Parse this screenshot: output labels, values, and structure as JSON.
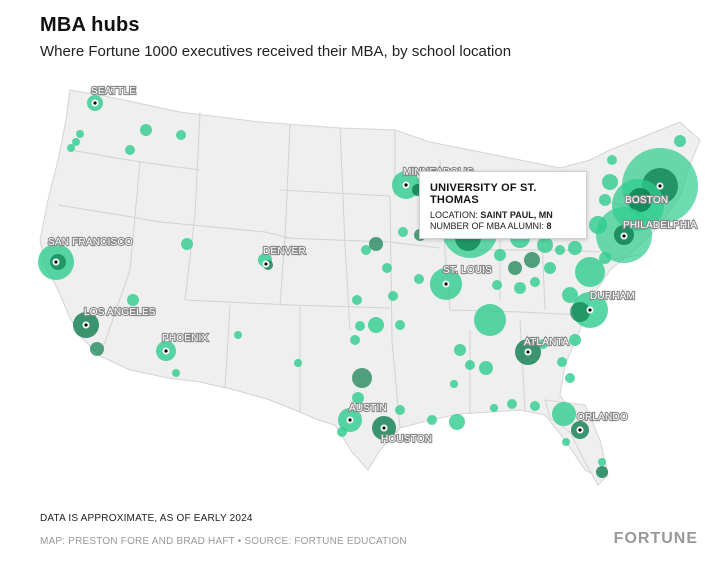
{
  "header": {
    "title": "MBA hubs",
    "subtitle": "Where Fortune 1000 executives received their MBA, by school location"
  },
  "tooltip": {
    "title": "UNIVERSITY OF ST. THOMAS",
    "location_label": "LOCATION:",
    "location_value": "SAINT PAUL, MN",
    "alumni_label": "NUMBER OF MBA ALUMNI:",
    "alumni_value": "8"
  },
  "map": {
    "land_color": "#efefef",
    "border_color": "#cfcfcf",
    "bubble_color": "#2ecc8f",
    "bubble_dark_color": "#0b7d4f",
    "city_labels": [
      "SEATTLE",
      "MINNEAPOLIS",
      "BOSTON",
      "SAN FRANCISCO",
      "DENVER",
      "PHILADELPHIA",
      "ST. LOUIS",
      "LOS ANGELES",
      "DURHAM",
      "PHOENIX",
      "ATLANTA",
      "AUSTIN",
      "ORLANDO",
      "HOUSTON"
    ]
  },
  "footer": {
    "note": "DATA IS APPROXIMATE, AS OF EARLY 2024",
    "credit": "MAP: PRESTON FORE AND BRAD HAFT • SOURCE: FORTUNE EDUCATION",
    "brand": "FORTUNE"
  }
}
